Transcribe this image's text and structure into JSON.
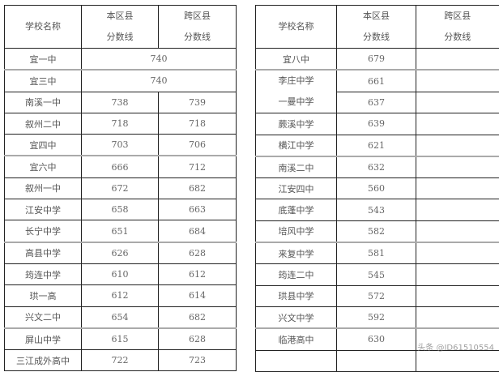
{
  "left_table": {
    "headers": [
      "学校名称",
      "本区县\n分数线",
      "跨区县\n分数线"
    ],
    "rows": [
      {
        "name": "宜一中",
        "merged": "740"
      },
      {
        "name": "宜三中",
        "merged": "740"
      },
      {
        "name": "南溪一中",
        "local": "738",
        "cross": "739"
      },
      {
        "name": "叙州二中",
        "local": "718",
        "cross": "718"
      },
      {
        "name": "宜四中",
        "local": "703",
        "cross": "706"
      },
      {
        "name": "宜六中",
        "local": "666",
        "cross": "712"
      },
      {
        "name": "叙州一中",
        "local": "672",
        "cross": "682"
      },
      {
        "name": "江安中学",
        "local": "658",
        "cross": "663"
      },
      {
        "name": "长宁中学",
        "local": "651",
        "cross": "684"
      },
      {
        "name": "高县中学",
        "local": "626",
        "cross": "628"
      },
      {
        "name": "筠连中学",
        "local": "610",
        "cross": "612"
      },
      {
        "name": "珙一高",
        "local": "612",
        "cross": "614"
      },
      {
        "name": "兴文二中",
        "local": "654",
        "cross": "682"
      },
      {
        "name": "屏山中学",
        "local": "615",
        "cross": "628"
      },
      {
        "name": "三江成外高中",
        "local": "722",
        "cross": "723"
      }
    ]
  },
  "right_table": {
    "headers": [
      "学校名称",
      "本区县\n分数线",
      "跨区县\n分数线"
    ],
    "rows": [
      {
        "name": "宜八中",
        "local": "679",
        "cross": ""
      },
      {
        "name": "李庄中学",
        "local": "661",
        "cross": ""
      },
      {
        "name": "一曼中学",
        "local": "637",
        "cross": ""
      },
      {
        "name": "蕨溪中学",
        "local": "639",
        "cross": ""
      },
      {
        "name": "横江中学",
        "local": "621",
        "cross": ""
      },
      {
        "name": "南溪二中",
        "local": "632",
        "cross": ""
      },
      {
        "name": "江安四中",
        "local": "560",
        "cross": ""
      },
      {
        "name": "底蓬中学",
        "local": "543",
        "cross": ""
      },
      {
        "name": "培风中学",
        "local": "582",
        "cross": ""
      },
      {
        "name": "来复中学",
        "local": "581",
        "cross": ""
      },
      {
        "name": "筠连二中",
        "local": "545",
        "cross": ""
      },
      {
        "name": "珙县中学",
        "local": "572",
        "cross": ""
      },
      {
        "name": "兴文中学",
        "local": "592",
        "cross": ""
      },
      {
        "name": "临港高中",
        "local": "630",
        "cross": ""
      },
      {
        "name": "",
        "local": "",
        "cross": ""
      }
    ]
  },
  "watermark": "头条 @ID61510554"
}
